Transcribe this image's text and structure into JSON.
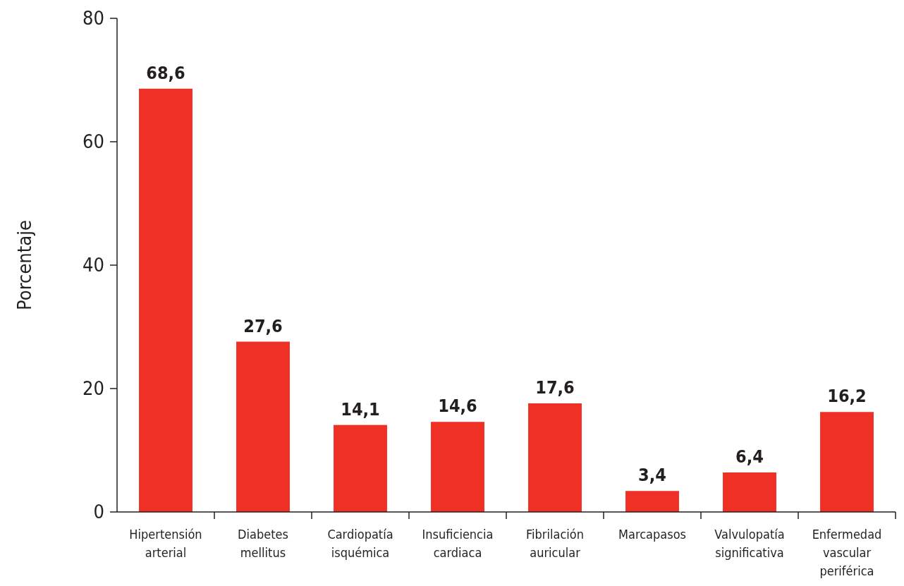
{
  "chart_data": {
    "type": "bar",
    "ylabel": "Porcentaje",
    "categories": [
      "Hipertensión arterial",
      "Diabetes mellitus",
      "Cardiopatía isquémica",
      "Insuficiencia cardiaca",
      "Fibrilación auricular",
      "Marcapasos",
      "Valvulopatía significativa",
      "Enfermedad vascular periférica"
    ],
    "values": [
      68.6,
      27.6,
      14.1,
      14.6,
      17.6,
      3.4,
      6.4,
      16.2
    ],
    "value_labels": [
      "68,6",
      "27,6",
      "14,1",
      "14,6",
      "17,6",
      "3,4",
      "6,4",
      "16,2"
    ],
    "color": "#ee3124",
    "ylim": [
      0,
      80
    ],
    "yticks": [
      0,
      20,
      40,
      60,
      80
    ],
    "grid": false
  }
}
